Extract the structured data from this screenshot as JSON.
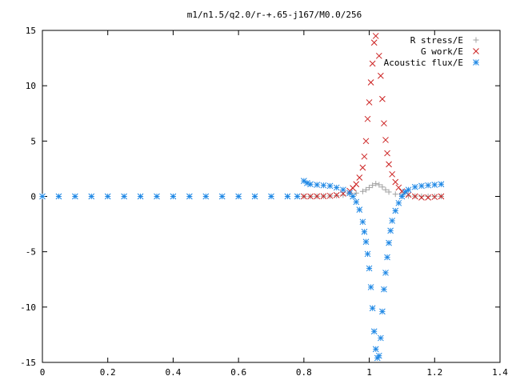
{
  "chart_data": {
    "type": "scatter",
    "title": "m1/n1.5/q2.0/r-+.65-j167/M0.0/256",
    "xlabel": "",
    "ylabel": "",
    "xlim": [
      0,
      1.4
    ],
    "ylim": [
      -15,
      15
    ],
    "x_ticks": [
      "0",
      "0.2",
      "0.4",
      "0.6",
      "0.8",
      "1",
      "1.2",
      "1.4"
    ],
    "y_ticks": [
      "15",
      "10",
      "5",
      "0",
      "-5",
      "-10",
      "-15"
    ],
    "grid": false,
    "legend_position": "top-right",
    "series": [
      {
        "name": "R stress/E",
        "marker": "plus",
        "color": "#a0a0a0",
        "points": [
          [
            0.8,
            0.0
          ],
          [
            0.82,
            0.0
          ],
          [
            0.84,
            0.01
          ],
          [
            0.86,
            0.02
          ],
          [
            0.88,
            0.04
          ],
          [
            0.9,
            0.07
          ],
          [
            0.92,
            0.12
          ],
          [
            0.94,
            0.2
          ],
          [
            0.96,
            0.3
          ],
          [
            0.98,
            0.45
          ],
          [
            0.99,
            0.6
          ],
          [
            1.0,
            0.8
          ],
          [
            1.01,
            1.0
          ],
          [
            1.02,
            1.15
          ],
          [
            1.03,
            1.05
          ],
          [
            1.04,
            0.85
          ],
          [
            1.05,
            0.6
          ],
          [
            1.06,
            0.4
          ],
          [
            1.08,
            0.2
          ],
          [
            1.1,
            0.1
          ],
          [
            1.12,
            0.05
          ],
          [
            1.14,
            0.02
          ],
          [
            1.16,
            0.01
          ],
          [
            1.18,
            0.0
          ],
          [
            1.2,
            0.0
          ],
          [
            1.22,
            0.0
          ]
        ]
      },
      {
        "name": "G work/E",
        "marker": "cross",
        "color": "#cc2222",
        "points": [
          [
            0.8,
            0.0
          ],
          [
            0.82,
            0.0
          ],
          [
            0.84,
            0.01
          ],
          [
            0.86,
            0.02
          ],
          [
            0.88,
            0.05
          ],
          [
            0.9,
            0.12
          ],
          [
            0.92,
            0.25
          ],
          [
            0.94,
            0.5
          ],
          [
            0.95,
            0.75
          ],
          [
            0.96,
            1.1
          ],
          [
            0.97,
            1.7
          ],
          [
            0.98,
            2.6
          ],
          [
            0.985,
            3.6
          ],
          [
            0.99,
            5.0
          ],
          [
            0.995,
            7.0
          ],
          [
            1.0,
            8.5
          ],
          [
            1.005,
            10.3
          ],
          [
            1.01,
            12.0
          ],
          [
            1.015,
            13.9
          ],
          [
            1.02,
            14.5
          ],
          [
            1.03,
            12.7
          ],
          [
            1.035,
            10.9
          ],
          [
            1.04,
            8.8
          ],
          [
            1.045,
            6.6
          ],
          [
            1.05,
            5.1
          ],
          [
            1.055,
            3.9
          ],
          [
            1.06,
            2.9
          ],
          [
            1.07,
            2.0
          ],
          [
            1.08,
            1.3
          ],
          [
            1.09,
            0.8
          ],
          [
            1.1,
            0.45
          ],
          [
            1.12,
            0.15
          ],
          [
            1.14,
            0.0
          ],
          [
            1.16,
            -0.1
          ],
          [
            1.18,
            -0.1
          ],
          [
            1.2,
            -0.05
          ],
          [
            1.22,
            0.0
          ]
        ]
      },
      {
        "name": "Acoustic flux/E",
        "marker": "star",
        "color": "#1f88e5",
        "points": [
          [
            0.0,
            0.0
          ],
          [
            0.05,
            0.0
          ],
          [
            0.1,
            0.0
          ],
          [
            0.15,
            0.0
          ],
          [
            0.2,
            0.0
          ],
          [
            0.25,
            0.0
          ],
          [
            0.3,
            0.0
          ],
          [
            0.35,
            0.0
          ],
          [
            0.4,
            0.0
          ],
          [
            0.45,
            0.0
          ],
          [
            0.5,
            0.0
          ],
          [
            0.55,
            0.0
          ],
          [
            0.6,
            0.0
          ],
          [
            0.65,
            0.0
          ],
          [
            0.7,
            0.0
          ],
          [
            0.75,
            0.0
          ],
          [
            0.78,
            0.0
          ],
          [
            0.8,
            1.4
          ],
          [
            0.81,
            1.2
          ],
          [
            0.82,
            1.1
          ],
          [
            0.84,
            1.05
          ],
          [
            0.86,
            1.0
          ],
          [
            0.88,
            0.95
          ],
          [
            0.9,
            0.8
          ],
          [
            0.92,
            0.6
          ],
          [
            0.94,
            0.3
          ],
          [
            0.95,
            0.0
          ],
          [
            0.96,
            -0.5
          ],
          [
            0.97,
            -1.2
          ],
          [
            0.98,
            -2.3
          ],
          [
            0.985,
            -3.2
          ],
          [
            0.99,
            -4.1
          ],
          [
            0.995,
            -5.2
          ],
          [
            1.0,
            -6.5
          ],
          [
            1.005,
            -8.2
          ],
          [
            1.01,
            -10.1
          ],
          [
            1.015,
            -12.2
          ],
          [
            1.02,
            -13.8
          ],
          [
            1.025,
            -14.6
          ],
          [
            1.03,
            -14.4
          ],
          [
            1.035,
            -12.8
          ],
          [
            1.04,
            -10.4
          ],
          [
            1.045,
            -8.4
          ],
          [
            1.05,
            -6.9
          ],
          [
            1.055,
            -5.5
          ],
          [
            1.06,
            -4.2
          ],
          [
            1.065,
            -3.1
          ],
          [
            1.07,
            -2.2
          ],
          [
            1.08,
            -1.3
          ],
          [
            1.09,
            -0.6
          ],
          [
            1.1,
            0.0
          ],
          [
            1.11,
            0.4
          ],
          [
            1.12,
            0.6
          ],
          [
            1.14,
            0.85
          ],
          [
            1.16,
            0.95
          ],
          [
            1.18,
            1.0
          ],
          [
            1.2,
            1.05
          ],
          [
            1.22,
            1.1
          ]
        ]
      }
    ]
  }
}
